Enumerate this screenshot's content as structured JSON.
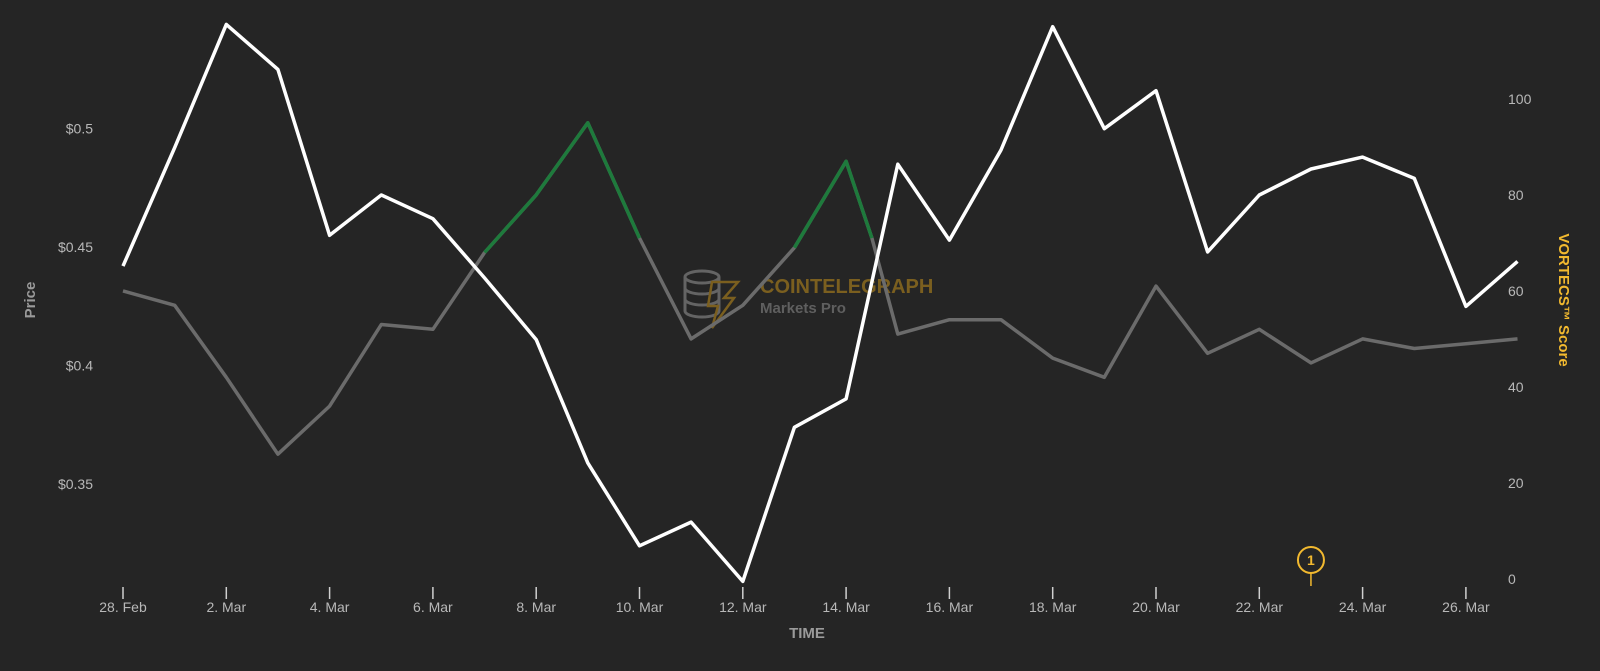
{
  "colors": {
    "background": "#252525",
    "price_line": "#ffffff",
    "score_line": "#6b6b6b",
    "score_highlight": "#1e7a3c",
    "score_axis_title": "#f2b92f",
    "annotation": "#f2b92f",
    "watermark": "#8a6a1e"
  },
  "watermark": {
    "brand": "COINTELEGRAPH",
    "sub": "Markets Pro"
  },
  "annotation": {
    "label": "1",
    "at": "23. Mar"
  },
  "chart_data": {
    "type": "line",
    "title": "",
    "xlabel": "TIME",
    "ylabel": "Price",
    "y2label": "VORTECS™ Score",
    "x": [
      "28. Feb",
      "1. Mar",
      "2. Mar",
      "3. Mar",
      "4. Mar",
      "5. Mar",
      "6. Mar",
      "7. Mar",
      "8. Mar",
      "9. Mar",
      "10. Mar",
      "11. Mar",
      "12. Mar",
      "13. Mar",
      "14. Mar",
      "14.5 Mar",
      "15. Mar",
      "16. Mar",
      "17. Mar",
      "18. Mar",
      "19. Mar",
      "20. Mar",
      "21. Mar",
      "22. Mar",
      "23. Mar",
      "24. Mar",
      "25. Mar",
      "26. Mar",
      "27. Mar"
    ],
    "x_ticks": [
      "28. Feb",
      "2. Mar",
      "4. Mar",
      "6. Mar",
      "8. Mar",
      "10. Mar",
      "12. Mar",
      "14. Mar",
      "16. Mar",
      "18. Mar",
      "20. Mar",
      "22. Mar",
      "24. Mar",
      "26. Mar"
    ],
    "y_ticks": [
      "$0.35",
      "$0.4",
      "$0.45",
      "$0.5"
    ],
    "y_tick_values": [
      0.35,
      0.4,
      0.45,
      0.5
    ],
    "ylim": [
      0.31,
      0.545
    ],
    "y2_ticks": [
      "0",
      "20",
      "40",
      "60",
      "80",
      "100"
    ],
    "y2_tick_values": [
      0,
      20,
      40,
      60,
      80,
      100
    ],
    "y2lim": [
      0,
      116
    ],
    "series": [
      {
        "name": "Price",
        "axis": "left",
        "values": [
          0.442,
          0.492,
          0.544,
          0.525,
          0.455,
          0.472,
          0.462,
          0.437,
          0.411,
          0.359,
          0.324,
          0.334,
          0.309,
          0.374,
          0.386,
          null,
          0.485,
          0.453,
          0.491,
          0.543,
          0.5,
          0.516,
          0.448,
          0.472,
          0.483,
          0.488,
          0.479,
          0.425,
          0.444
        ]
      },
      {
        "name": "VORTECS™ Score",
        "axis": "right",
        "values": [
          60,
          57,
          42,
          26,
          36,
          53,
          52,
          68,
          80,
          95,
          71,
          50,
          57,
          69,
          87,
          71,
          51,
          54,
          54,
          46,
          42,
          61,
          47,
          52,
          45,
          50,
          48,
          49,
          50
        ],
        "highlight_ranges": [
          [
            7,
            10
          ],
          [
            13,
            15
          ]
        ]
      }
    ],
    "grid": false,
    "legend": "none"
  }
}
